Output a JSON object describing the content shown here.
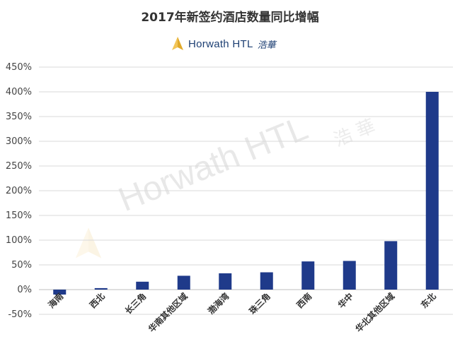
{
  "title": "2017年新签约酒店数量同比增幅",
  "logo": {
    "text": "Horwath HTL",
    "cn": "浩華",
    "icon": "horwath-sail-icon"
  },
  "watermark": {
    "text": "Horwath HTL",
    "cn": "浩 華"
  },
  "colors": {
    "bar": "#1f3a8a",
    "grid": "#d9d9d9",
    "axis": "#bfbfbf",
    "logo_gold": "#e0a92a"
  },
  "chart_data": {
    "type": "bar",
    "title": "2017年新签约酒店数量同比增幅",
    "categories": [
      "海南",
      "西北",
      "长三角",
      "华南其他区域",
      "渤海湾",
      "珠三角",
      "西南",
      "华中",
      "华北其他区域",
      "东北"
    ],
    "values": [
      -10,
      3,
      16,
      28,
      33,
      35,
      57,
      58,
      98,
      400
    ],
    "ylim": [
      -50,
      450
    ],
    "yticks": [
      "450%",
      "400%",
      "350%",
      "300%",
      "250%",
      "200%",
      "150%",
      "100%",
      "50%",
      "0%",
      "-50%"
    ],
    "xlabel": "",
    "ylabel": "",
    "grid": true,
    "legend": "none"
  }
}
